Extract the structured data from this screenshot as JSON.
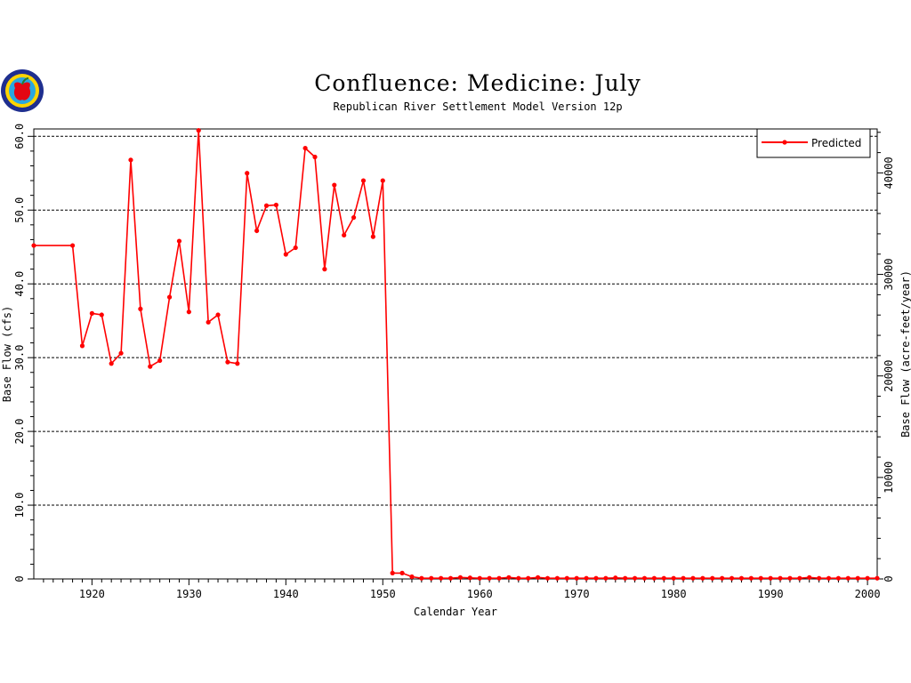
{
  "chart_data": {
    "type": "line",
    "title": "Confluence: Medicine: July",
    "subtitle": "Republican River Settlement Model Version 12p",
    "xlabel": "Calendar Year",
    "ylabel": "Base Flow (cfs)",
    "ylabel_right": "Base Flow (acre-feet/year)",
    "xlim": [
      1914,
      2001
    ],
    "ylim": [
      0,
      61
    ],
    "ylim_right": [
      0,
      44330
    ],
    "x_ticks": [
      1920,
      1930,
      1940,
      1950,
      1960,
      1970,
      1980,
      1990,
      2000
    ],
    "y_ticks": [
      "0",
      "10.0",
      "20.0",
      "30.0",
      "40.0",
      "50.0",
      "60.0"
    ],
    "y_ticks_right": [
      "0",
      "10000",
      "20000",
      "30000",
      "40000"
    ],
    "y_gridlines": [
      10,
      20,
      30,
      40,
      50,
      60
    ],
    "grid_style": "dashed horizontal",
    "legend_position": "top-right",
    "series": [
      {
        "name": "Predicted",
        "color": "#ff0000",
        "marker": "circle",
        "x": [
          1914,
          1918,
          1919,
          1920,
          1921,
          1922,
          1923,
          1924,
          1925,
          1926,
          1927,
          1928,
          1929,
          1930,
          1931,
          1932,
          1933,
          1934,
          1935,
          1936,
          1937,
          1938,
          1939,
          1940,
          1941,
          1942,
          1943,
          1944,
          1945,
          1946,
          1947,
          1948,
          1949,
          1950,
          1951,
          1952,
          1953,
          1954,
          1955,
          1956,
          1957,
          1958,
          1959,
          1960,
          1961,
          1962,
          1963,
          1964,
          1965,
          1966,
          1967,
          1968,
          1969,
          1970,
          1971,
          1972,
          1973,
          1974,
          1975,
          1976,
          1977,
          1978,
          1979,
          1980,
          1981,
          1982,
          1983,
          1984,
          1985,
          1986,
          1987,
          1988,
          1989,
          1990,
          1991,
          1992,
          1993,
          1994,
          1995,
          1996,
          1997,
          1998,
          1999,
          2000,
          2001
        ],
        "values": [
          45.2,
          45.2,
          31.6,
          36.0,
          35.8,
          29.2,
          30.6,
          56.8,
          36.6,
          28.8,
          29.6,
          38.2,
          45.8,
          36.2,
          60.8,
          34.8,
          35.8,
          29.4,
          29.2,
          55.0,
          47.2,
          50.6,
          50.7,
          44.0,
          44.9,
          58.4,
          57.2,
          42.0,
          53.4,
          46.6,
          49.0,
          54.0,
          46.4,
          54.0,
          0.8,
          0.8,
          0.3,
          0.1,
          0.1,
          0.1,
          0.1,
          0.2,
          0.15,
          0.1,
          0.1,
          0.1,
          0.2,
          0.1,
          0.1,
          0.2,
          0.1,
          0.1,
          0.1,
          0.1,
          0.1,
          0.1,
          0.1,
          0.15,
          0.1,
          0.1,
          0.1,
          0.1,
          0.1,
          0.1,
          0.1,
          0.1,
          0.1,
          0.1,
          0.1,
          0.1,
          0.1,
          0.1,
          0.1,
          0.1,
          0.1,
          0.1,
          0.1,
          0.2,
          0.1,
          0.1,
          0.1,
          0.1,
          0.1,
          0.1,
          0.1
        ]
      }
    ]
  },
  "colors": {
    "line": "#ff0000",
    "axis": "#000000",
    "grid": "#000000",
    "background": "#ffffff"
  },
  "logo": {
    "icon": "apple-seal-logo"
  }
}
